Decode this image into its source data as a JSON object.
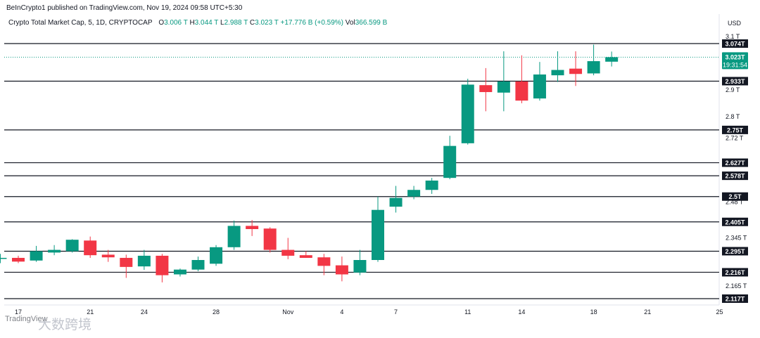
{
  "publisher": "BeInCrypto1 published on TradingView.com, Nov 19, 2024 09:58 UTC+5:30",
  "legend": {
    "symbol": "Crypto Total Market Cap, 5, 1D, CRYPTOCAP",
    "open_label": "O",
    "open": "3.006 T",
    "high_label": "H",
    "high": "3.044 T",
    "low_label": "L",
    "low": "2.988 T",
    "close_label": "C",
    "close": "3.023 T",
    "change": "+17.776 B (+0.59%)",
    "vol_label": "Vol",
    "vol": "366.599 B"
  },
  "currency": "USD",
  "watermark": "TradingView",
  "watermark2": "大数跨境",
  "colors": {
    "up": "#089981",
    "down": "#f23645",
    "level": "#131722",
    "price_tag": "#089981"
  },
  "chart_data": {
    "type": "candlestick",
    "y_unit": "T (USD)",
    "ylim": [
      2.105,
      3.1
    ],
    "x_ticks": [
      {
        "day": 17,
        "label": "17"
      },
      {
        "day": 21,
        "label": "21"
      },
      {
        "day": 24,
        "label": "24"
      },
      {
        "day": 28,
        "label": "28"
      },
      {
        "day": 32,
        "label": "Nov"
      },
      {
        "day": 35,
        "label": "4"
      },
      {
        "day": 38,
        "label": "7"
      },
      {
        "day": 42,
        "label": "11"
      },
      {
        "day": 45,
        "label": "14"
      },
      {
        "day": 49,
        "label": "18"
      },
      {
        "day": 52,
        "label": "21"
      },
      {
        "day": 56,
        "label": "25"
      }
    ],
    "y_ticks": [
      {
        "value": 3.1,
        "label": "3.1 T"
      },
      {
        "value": 2.9,
        "label": "2.9 T"
      },
      {
        "value": 2.8,
        "label": "2.8 T"
      },
      {
        "value": 2.72,
        "label": "2.72 T"
      },
      {
        "value": 2.48,
        "label": "2.48 T"
      },
      {
        "value": 2.345,
        "label": "2.345 T"
      },
      {
        "value": 2.165,
        "label": "2.165 T"
      }
    ],
    "levels": [
      {
        "value": 3.074,
        "label": "3.074T"
      },
      {
        "value": 2.933,
        "label": "2.933T"
      },
      {
        "value": 2.75,
        "label": "2.75T"
      },
      {
        "value": 2.627,
        "label": "2.627T"
      },
      {
        "value": 2.578,
        "label": "2.578T"
      },
      {
        "value": 2.5,
        "label": "2.5T"
      },
      {
        "value": 2.405,
        "label": "2.405T"
      },
      {
        "value": 2.295,
        "label": "2.295T"
      },
      {
        "value": 2.216,
        "label": "2.216T"
      },
      {
        "value": 2.117,
        "label": "2.117T"
      }
    ],
    "last_price": {
      "value": 3.023,
      "label": "3.023T",
      "countdown": "19:31:54"
    },
    "candles": [
      {
        "day": 16,
        "o": 2.268,
        "h": 2.285,
        "l": 2.25,
        "c": 2.27
      },
      {
        "day": 17,
        "o": 2.27,
        "h": 2.278,
        "l": 2.25,
        "c": 2.256
      },
      {
        "day": 18,
        "o": 2.26,
        "h": 2.315,
        "l": 2.255,
        "c": 2.295
      },
      {
        "day": 19,
        "o": 2.29,
        "h": 2.318,
        "l": 2.28,
        "c": 2.3
      },
      {
        "day": 20,
        "o": 2.295,
        "h": 2.34,
        "l": 2.29,
        "c": 2.338
      },
      {
        "day": 21,
        "o": 2.335,
        "h": 2.35,
        "l": 2.27,
        "c": 2.28
      },
      {
        "day": 22,
        "o": 2.282,
        "h": 2.3,
        "l": 2.255,
        "c": 2.272
      },
      {
        "day": 23,
        "o": 2.27,
        "h": 2.282,
        "l": 2.195,
        "c": 2.236
      },
      {
        "day": 24,
        "o": 2.238,
        "h": 2.3,
        "l": 2.225,
        "c": 2.278
      },
      {
        "day": 25,
        "o": 2.278,
        "h": 2.285,
        "l": 2.178,
        "c": 2.205
      },
      {
        "day": 26,
        "o": 2.208,
        "h": 2.23,
        "l": 2.2,
        "c": 2.226
      },
      {
        "day": 27,
        "o": 2.226,
        "h": 2.275,
        "l": 2.22,
        "c": 2.262
      },
      {
        "day": 28,
        "o": 2.248,
        "h": 2.318,
        "l": 2.24,
        "c": 2.31
      },
      {
        "day": 29,
        "o": 2.31,
        "h": 2.41,
        "l": 2.3,
        "c": 2.39
      },
      {
        "day": 30,
        "o": 2.39,
        "h": 2.412,
        "l": 2.352,
        "c": 2.378
      },
      {
        "day": 31,
        "o": 2.38,
        "h": 2.385,
        "l": 2.29,
        "c": 2.3
      },
      {
        "day": 32,
        "o": 2.3,
        "h": 2.345,
        "l": 2.265,
        "c": 2.278
      },
      {
        "day": 33,
        "o": 2.28,
        "h": 2.295,
        "l": 2.27,
        "c": 2.27
      },
      {
        "day": 34,
        "o": 2.272,
        "h": 2.285,
        "l": 2.205,
        "c": 2.24
      },
      {
        "day": 35,
        "o": 2.242,
        "h": 2.275,
        "l": 2.182,
        "c": 2.208
      },
      {
        "day": 36,
        "o": 2.215,
        "h": 2.3,
        "l": 2.205,
        "c": 2.262
      },
      {
        "day": 37,
        "o": 2.262,
        "h": 2.5,
        "l": 2.255,
        "c": 2.45
      },
      {
        "day": 38,
        "o": 2.462,
        "h": 2.54,
        "l": 2.44,
        "c": 2.495
      },
      {
        "day": 39,
        "o": 2.5,
        "h": 2.54,
        "l": 2.49,
        "c": 2.525
      },
      {
        "day": 40,
        "o": 2.525,
        "h": 2.57,
        "l": 2.51,
        "c": 2.56
      },
      {
        "day": 41,
        "o": 2.57,
        "h": 2.728,
        "l": 2.565,
        "c": 2.69
      },
      {
        "day": 42,
        "o": 2.7,
        "h": 2.942,
        "l": 2.695,
        "c": 2.92
      },
      {
        "day": 43,
        "o": 2.918,
        "h": 2.982,
        "l": 2.82,
        "c": 2.892
      },
      {
        "day": 44,
        "o": 2.89,
        "h": 3.045,
        "l": 2.82,
        "c": 2.932
      },
      {
        "day": 45,
        "o": 2.932,
        "h": 3.03,
        "l": 2.85,
        "c": 2.86
      },
      {
        "day": 46,
        "o": 2.868,
        "h": 3.005,
        "l": 2.86,
        "c": 2.958
      },
      {
        "day": 47,
        "o": 2.955,
        "h": 3.045,
        "l": 2.93,
        "c": 2.975
      },
      {
        "day": 48,
        "o": 2.98,
        "h": 3.045,
        "l": 2.915,
        "c": 2.96
      },
      {
        "day": 49,
        "o": 2.962,
        "h": 3.07,
        "l": 2.955,
        "c": 3.008
      },
      {
        "day": 50,
        "o": 3.006,
        "h": 3.044,
        "l": 2.988,
        "c": 3.023
      }
    ]
  }
}
